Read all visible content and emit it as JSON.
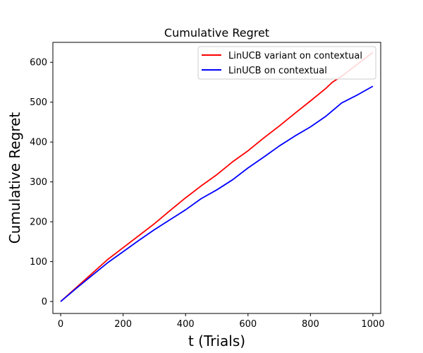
{
  "chart_data": {
    "type": "line",
    "title": "Cumulative Regret",
    "xlabel": "t (Trials)",
    "ylabel": "Cumulative Regret",
    "xlim": [
      -25,
      1025
    ],
    "ylim": [
      -30,
      650
    ],
    "xticks": [
      0,
      200,
      400,
      600,
      800,
      1000
    ],
    "yticks": [
      0,
      100,
      200,
      300,
      400,
      500,
      600
    ],
    "grid": false,
    "legend_position": "upper right",
    "series": [
      {
        "name": "LinUCB variant on contextual",
        "color": "#ff0000",
        "x": [
          0,
          50,
          100,
          150,
          200,
          250,
          300,
          350,
          400,
          450,
          500,
          550,
          600,
          650,
          700,
          750,
          800,
          850,
          870,
          900,
          950,
          1000
        ],
        "y": [
          0,
          35,
          70,
          105,
          135,
          165,
          195,
          228,
          260,
          290,
          318,
          350,
          378,
          410,
          440,
          472,
          503,
          535,
          550,
          565,
          595,
          625
        ]
      },
      {
        "name": "LinUCB on contextual",
        "color": "#0000ff",
        "x": [
          0,
          50,
          100,
          150,
          200,
          250,
          300,
          350,
          400,
          450,
          500,
          550,
          600,
          650,
          700,
          750,
          800,
          850,
          900,
          950,
          1000
        ],
        "y": [
          0,
          33,
          65,
          97,
          125,
          153,
          180,
          205,
          230,
          258,
          280,
          305,
          335,
          362,
          390,
          415,
          438,
          465,
          498,
          518,
          540
        ]
      }
    ]
  }
}
